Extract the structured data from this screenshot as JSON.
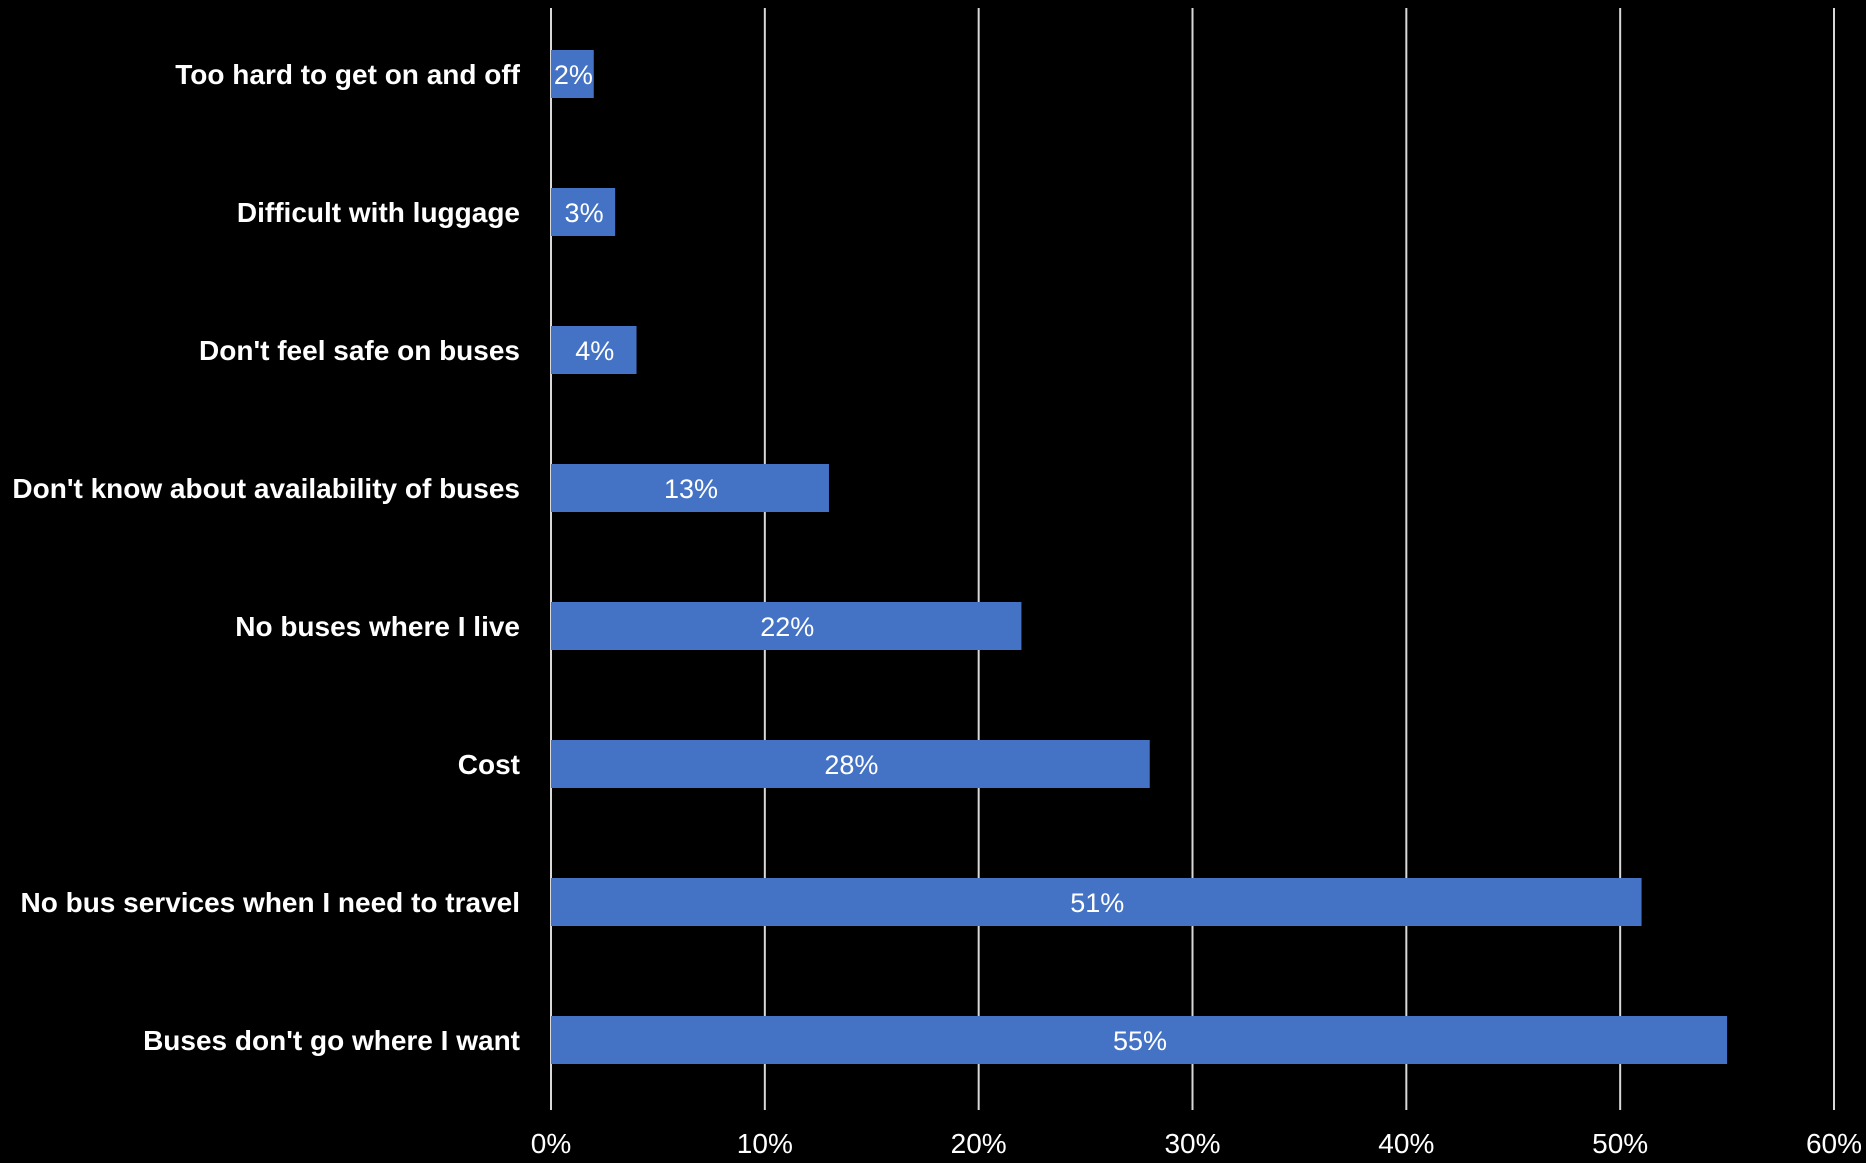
{
  "chart_data": {
    "type": "bar",
    "orientation": "horizontal",
    "categories": [
      "Too hard to get on and off",
      "Difficult with luggage",
      "Don't feel safe on buses",
      "Don't know about availability of buses",
      "No buses where I live",
      "Cost",
      "No bus services when I need to travel",
      "Buses don't go where I want"
    ],
    "values": [
      2,
      3,
      4,
      13,
      22,
      28,
      51,
      55
    ],
    "data_labels": [
      "2%",
      "3%",
      "4%",
      "13%",
      "22%",
      "28%",
      "51%",
      "55%"
    ],
    "xlim": [
      0,
      60
    ],
    "xticks": [
      0,
      10,
      20,
      30,
      40,
      50,
      60
    ],
    "xtick_labels": [
      "0%",
      "10%",
      "20%",
      "30%",
      "40%",
      "50%",
      "60%"
    ],
    "grid": true,
    "legend": "none",
    "colors": {
      "bar": "#4472C4",
      "background": "#000000",
      "text": "#ffffff",
      "grid": "#d9d9d9"
    }
  }
}
